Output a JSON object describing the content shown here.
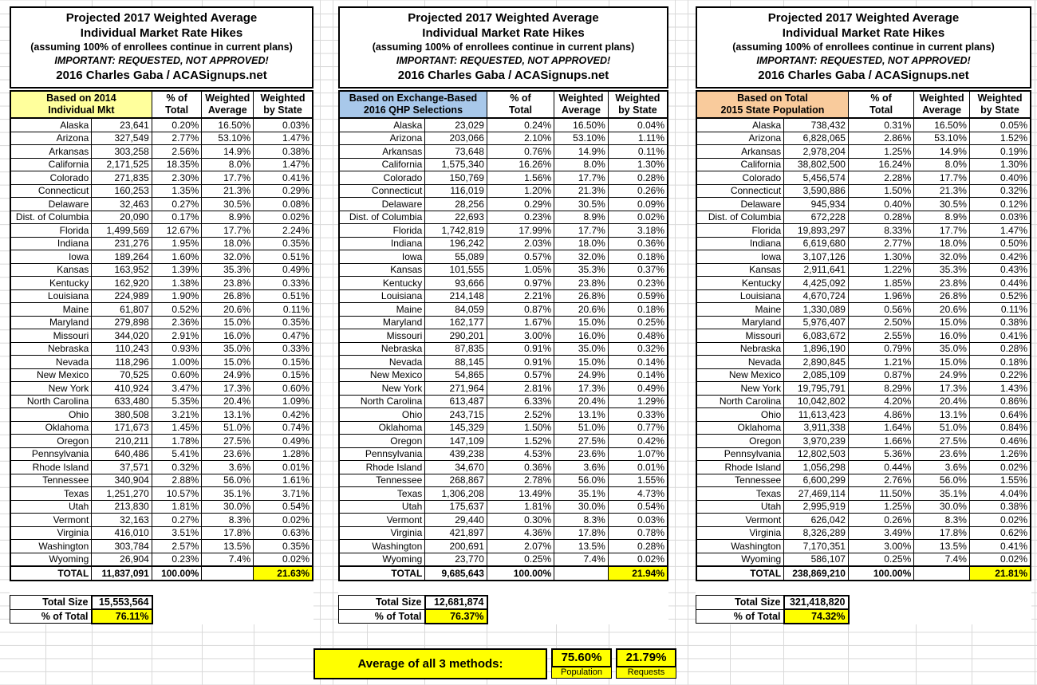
{
  "shared": {
    "title_line1": "Projected 2017 Weighted Average",
    "title_line2": "Individual Market Rate Hikes",
    "subtitle": "(assuming 100% of enrollees continue in current plans)",
    "warning": "IMPORTANT: REQUESTED, NOT APPROVED!",
    "byline": "2016 Charles Gaba / ACASignups.net",
    "col_pct_line1": "% of",
    "col_pct_line2": "Total",
    "col_wavg_line1": "Weighted",
    "col_wavg_line2": "Average",
    "col_wstate_line1": "Weighted",
    "col_wstate_line2": "by State"
  },
  "colors": {
    "header_yellow": "#FFFF9C",
    "header_blue": "#A8C8EA",
    "header_peach": "#F9CB9C",
    "highlight_yellow": "#FFFF00"
  },
  "tables": [
    {
      "header_line1": "Based on 2014",
      "header_line2": "Individual Mkt",
      "header_color": "#FFFF9C",
      "rows": [
        {
          "state": "Alaska",
          "value": "23,641",
          "pct": "0.20%",
          "wavg": "16.50%",
          "wstate": "0.03%"
        },
        {
          "state": "Arizona",
          "value": "327,549",
          "pct": "2.77%",
          "wavg": "53.10%",
          "wstate": "1.47%"
        },
        {
          "state": "Arkansas",
          "value": "303,258",
          "pct": "2.56%",
          "wavg": "14.9%",
          "wstate": "0.38%"
        },
        {
          "state": "California",
          "value": "2,171,525",
          "pct": "18.35%",
          "wavg": "8.0%",
          "wstate": "1.47%"
        },
        {
          "state": "Colorado",
          "value": "271,835",
          "pct": "2.30%",
          "wavg": "17.7%",
          "wstate": "0.41%"
        },
        {
          "state": "Connecticut",
          "value": "160,253",
          "pct": "1.35%",
          "wavg": "21.3%",
          "wstate": "0.29%"
        },
        {
          "state": "Delaware",
          "value": "32,463",
          "pct": "0.27%",
          "wavg": "30.5%",
          "wstate": "0.08%"
        },
        {
          "state": "Dist. of Columbia",
          "value": "20,090",
          "pct": "0.17%",
          "wavg": "8.9%",
          "wstate": "0.02%"
        },
        {
          "state": "Florida",
          "value": "1,499,569",
          "pct": "12.67%",
          "wavg": "17.7%",
          "wstate": "2.24%"
        },
        {
          "state": "Indiana",
          "value": "231,276",
          "pct": "1.95%",
          "wavg": "18.0%",
          "wstate": "0.35%"
        },
        {
          "state": "Iowa",
          "value": "189,264",
          "pct": "1.60%",
          "wavg": "32.0%",
          "wstate": "0.51%"
        },
        {
          "state": "Kansas",
          "value": "163,952",
          "pct": "1.39%",
          "wavg": "35.3%",
          "wstate": "0.49%"
        },
        {
          "state": "Kentucky",
          "value": "162,920",
          "pct": "1.38%",
          "wavg": "23.8%",
          "wstate": "0.33%"
        },
        {
          "state": "Louisiana",
          "value": "224,989",
          "pct": "1.90%",
          "wavg": "26.8%",
          "wstate": "0.51%"
        },
        {
          "state": "Maine",
          "value": "61,807",
          "pct": "0.52%",
          "wavg": "20.6%",
          "wstate": "0.11%"
        },
        {
          "state": "Maryland",
          "value": "279,898",
          "pct": "2.36%",
          "wavg": "15.0%",
          "wstate": "0.35%"
        },
        {
          "state": "Missouri",
          "value": "344,020",
          "pct": "2.91%",
          "wavg": "16.0%",
          "wstate": "0.47%"
        },
        {
          "state": "Nebraska",
          "value": "110,243",
          "pct": "0.93%",
          "wavg": "35.0%",
          "wstate": "0.33%"
        },
        {
          "state": "Nevada",
          "value": "118,296",
          "pct": "1.00%",
          "wavg": "15.0%",
          "wstate": "0.15%"
        },
        {
          "state": "New Mexico",
          "value": "70,525",
          "pct": "0.60%",
          "wavg": "24.9%",
          "wstate": "0.15%"
        },
        {
          "state": "New York",
          "value": "410,924",
          "pct": "3.47%",
          "wavg": "17.3%",
          "wstate": "0.60%"
        },
        {
          "state": "North Carolina",
          "value": "633,480",
          "pct": "5.35%",
          "wavg": "20.4%",
          "wstate": "1.09%"
        },
        {
          "state": "Ohio",
          "value": "380,508",
          "pct": "3.21%",
          "wavg": "13.1%",
          "wstate": "0.42%"
        },
        {
          "state": "Oklahoma",
          "value": "171,673",
          "pct": "1.45%",
          "wavg": "51.0%",
          "wstate": "0.74%"
        },
        {
          "state": "Oregon",
          "value": "210,211",
          "pct": "1.78%",
          "wavg": "27.5%",
          "wstate": "0.49%"
        },
        {
          "state": "Pennsylvania",
          "value": "640,486",
          "pct": "5.41%",
          "wavg": "23.6%",
          "wstate": "1.28%"
        },
        {
          "state": "Rhode Island",
          "value": "37,571",
          "pct": "0.32%",
          "wavg": "3.6%",
          "wstate": "0.01%"
        },
        {
          "state": "Tennessee",
          "value": "340,904",
          "pct": "2.88%",
          "wavg": "56.0%",
          "wstate": "1.61%"
        },
        {
          "state": "Texas",
          "value": "1,251,270",
          "pct": "10.57%",
          "wavg": "35.1%",
          "wstate": "3.71%"
        },
        {
          "state": "Utah",
          "value": "213,830",
          "pct": "1.81%",
          "wavg": "30.0%",
          "wstate": "0.54%"
        },
        {
          "state": "Vermont",
          "value": "32,163",
          "pct": "0.27%",
          "wavg": "8.3%",
          "wstate": "0.02%"
        },
        {
          "state": "Virginia",
          "value": "416,010",
          "pct": "3.51%",
          "wavg": "17.8%",
          "wstate": "0.63%"
        },
        {
          "state": "Washington",
          "value": "303,784",
          "pct": "2.57%",
          "wavg": "13.5%",
          "wstate": "0.35%"
        },
        {
          "state": "Wyoming",
          "value": "26,904",
          "pct": "0.23%",
          "wavg": "7.4%",
          "wstate": "0.02%"
        }
      ],
      "total": {
        "label": "TOTAL",
        "value": "11,837,091",
        "pct": "100.00%",
        "wavg": "",
        "wstate": "21.63%"
      },
      "total_size_label": "Total Size",
      "total_size": "15,553,564",
      "pct_total_label": "% of Total",
      "pct_of_total": "76.11%"
    },
    {
      "header_line1": "Based on Exchange-Based",
      "header_line2": "2016 QHP Selections",
      "header_color": "#A8C8EA",
      "rows": [
        {
          "state": "Alaska",
          "value": "23,029",
          "pct": "0.24%",
          "wavg": "16.50%",
          "wstate": "0.04%"
        },
        {
          "state": "Arizona",
          "value": "203,066",
          "pct": "2.10%",
          "wavg": "53.10%",
          "wstate": "1.11%"
        },
        {
          "state": "Arkansas",
          "value": "73,648",
          "pct": "0.76%",
          "wavg": "14.9%",
          "wstate": "0.11%"
        },
        {
          "state": "California",
          "value": "1,575,340",
          "pct": "16.26%",
          "wavg": "8.0%",
          "wstate": "1.30%"
        },
        {
          "state": "Colorado",
          "value": "150,769",
          "pct": "1.56%",
          "wavg": "17.7%",
          "wstate": "0.28%"
        },
        {
          "state": "Connecticut",
          "value": "116,019",
          "pct": "1.20%",
          "wavg": "21.3%",
          "wstate": "0.26%"
        },
        {
          "state": "Delaware",
          "value": "28,256",
          "pct": "0.29%",
          "wavg": "30.5%",
          "wstate": "0.09%"
        },
        {
          "state": "Dist. of Columbia",
          "value": "22,693",
          "pct": "0.23%",
          "wavg": "8.9%",
          "wstate": "0.02%"
        },
        {
          "state": "Florida",
          "value": "1,742,819",
          "pct": "17.99%",
          "wavg": "17.7%",
          "wstate": "3.18%"
        },
        {
          "state": "Indiana",
          "value": "196,242",
          "pct": "2.03%",
          "wavg": "18.0%",
          "wstate": "0.36%"
        },
        {
          "state": "Iowa",
          "value": "55,089",
          "pct": "0.57%",
          "wavg": "32.0%",
          "wstate": "0.18%"
        },
        {
          "state": "Kansas",
          "value": "101,555",
          "pct": "1.05%",
          "wavg": "35.3%",
          "wstate": "0.37%"
        },
        {
          "state": "Kentucky",
          "value": "93,666",
          "pct": "0.97%",
          "wavg": "23.8%",
          "wstate": "0.23%"
        },
        {
          "state": "Louisiana",
          "value": "214,148",
          "pct": "2.21%",
          "wavg": "26.8%",
          "wstate": "0.59%"
        },
        {
          "state": "Maine",
          "value": "84,059",
          "pct": "0.87%",
          "wavg": "20.6%",
          "wstate": "0.18%"
        },
        {
          "state": "Maryland",
          "value": "162,177",
          "pct": "1.67%",
          "wavg": "15.0%",
          "wstate": "0.25%"
        },
        {
          "state": "Missouri",
          "value": "290,201",
          "pct": "3.00%",
          "wavg": "16.0%",
          "wstate": "0.48%"
        },
        {
          "state": "Nebraska",
          "value": "87,835",
          "pct": "0.91%",
          "wavg": "35.0%",
          "wstate": "0.32%"
        },
        {
          "state": "Nevada",
          "value": "88,145",
          "pct": "0.91%",
          "wavg": "15.0%",
          "wstate": "0.14%"
        },
        {
          "state": "New Mexico",
          "value": "54,865",
          "pct": "0.57%",
          "wavg": "24.9%",
          "wstate": "0.14%"
        },
        {
          "state": "New York",
          "value": "271,964",
          "pct": "2.81%",
          "wavg": "17.3%",
          "wstate": "0.49%"
        },
        {
          "state": "North Carolina",
          "value": "613,487",
          "pct": "6.33%",
          "wavg": "20.4%",
          "wstate": "1.29%"
        },
        {
          "state": "Ohio",
          "value": "243,715",
          "pct": "2.52%",
          "wavg": "13.1%",
          "wstate": "0.33%"
        },
        {
          "state": "Oklahoma",
          "value": "145,329",
          "pct": "1.50%",
          "wavg": "51.0%",
          "wstate": "0.77%"
        },
        {
          "state": "Oregon",
          "value": "147,109",
          "pct": "1.52%",
          "wavg": "27.5%",
          "wstate": "0.42%"
        },
        {
          "state": "Pennsylvania",
          "value": "439,238",
          "pct": "4.53%",
          "wavg": "23.6%",
          "wstate": "1.07%"
        },
        {
          "state": "Rhode Island",
          "value": "34,670",
          "pct": "0.36%",
          "wavg": "3.6%",
          "wstate": "0.01%"
        },
        {
          "state": "Tennessee",
          "value": "268,867",
          "pct": "2.78%",
          "wavg": "56.0%",
          "wstate": "1.55%"
        },
        {
          "state": "Texas",
          "value": "1,306,208",
          "pct": "13.49%",
          "wavg": "35.1%",
          "wstate": "4.73%"
        },
        {
          "state": "Utah",
          "value": "175,637",
          "pct": "1.81%",
          "wavg": "30.0%",
          "wstate": "0.54%"
        },
        {
          "state": "Vermont",
          "value": "29,440",
          "pct": "0.30%",
          "wavg": "8.3%",
          "wstate": "0.03%"
        },
        {
          "state": "Virginia",
          "value": "421,897",
          "pct": "4.36%",
          "wavg": "17.8%",
          "wstate": "0.78%"
        },
        {
          "state": "Washington",
          "value": "200,691",
          "pct": "2.07%",
          "wavg": "13.5%",
          "wstate": "0.28%"
        },
        {
          "state": "Wyoming",
          "value": "23,770",
          "pct": "0.25%",
          "wavg": "7.4%",
          "wstate": "0.02%"
        }
      ],
      "total": {
        "label": "TOTAL",
        "value": "9,685,643",
        "pct": "100.00%",
        "wavg": "",
        "wstate": "21.94%"
      },
      "total_size_label": "Total Size",
      "total_size": "12,681,874",
      "pct_total_label": "% of Total",
      "pct_of_total": "76.37%"
    },
    {
      "header_line1": "Based on Total",
      "header_line2": "2015 State Population",
      "header_color": "#F9CB9C",
      "rows": [
        {
          "state": "Alaska",
          "value": "738,432",
          "pct": "0.31%",
          "wavg": "16.50%",
          "wstate": "0.05%"
        },
        {
          "state": "Arizona",
          "value": "6,828,065",
          "pct": "2.86%",
          "wavg": "53.10%",
          "wstate": "1.52%"
        },
        {
          "state": "Arkansas",
          "value": "2,978,204",
          "pct": "1.25%",
          "wavg": "14.9%",
          "wstate": "0.19%"
        },
        {
          "state": "California",
          "value": "38,802,500",
          "pct": "16.24%",
          "wavg": "8.0%",
          "wstate": "1.30%"
        },
        {
          "state": "Colorado",
          "value": "5,456,574",
          "pct": "2.28%",
          "wavg": "17.7%",
          "wstate": "0.40%"
        },
        {
          "state": "Connecticut",
          "value": "3,590,886",
          "pct": "1.50%",
          "wavg": "21.3%",
          "wstate": "0.32%"
        },
        {
          "state": "Delaware",
          "value": "945,934",
          "pct": "0.40%",
          "wavg": "30.5%",
          "wstate": "0.12%"
        },
        {
          "state": "Dist. of Columbia",
          "value": "672,228",
          "pct": "0.28%",
          "wavg": "8.9%",
          "wstate": "0.03%"
        },
        {
          "state": "Florida",
          "value": "19,893,297",
          "pct": "8.33%",
          "wavg": "17.7%",
          "wstate": "1.47%"
        },
        {
          "state": "Indiana",
          "value": "6,619,680",
          "pct": "2.77%",
          "wavg": "18.0%",
          "wstate": "0.50%"
        },
        {
          "state": "Iowa",
          "value": "3,107,126",
          "pct": "1.30%",
          "wavg": "32.0%",
          "wstate": "0.42%"
        },
        {
          "state": "Kansas",
          "value": "2,911,641",
          "pct": "1.22%",
          "wavg": "35.3%",
          "wstate": "0.43%"
        },
        {
          "state": "Kentucky",
          "value": "4,425,092",
          "pct": "1.85%",
          "wavg": "23.8%",
          "wstate": "0.44%"
        },
        {
          "state": "Louisiana",
          "value": "4,670,724",
          "pct": "1.96%",
          "wavg": "26.8%",
          "wstate": "0.52%"
        },
        {
          "state": "Maine",
          "value": "1,330,089",
          "pct": "0.56%",
          "wavg": "20.6%",
          "wstate": "0.11%"
        },
        {
          "state": "Maryland",
          "value": "5,976,407",
          "pct": "2.50%",
          "wavg": "15.0%",
          "wstate": "0.38%"
        },
        {
          "state": "Missouri",
          "value": "6,083,672",
          "pct": "2.55%",
          "wavg": "16.0%",
          "wstate": "0.41%"
        },
        {
          "state": "Nebraska",
          "value": "1,896,190",
          "pct": "0.79%",
          "wavg": "35.0%",
          "wstate": "0.28%"
        },
        {
          "state": "Nevada",
          "value": "2,890,845",
          "pct": "1.21%",
          "wavg": "15.0%",
          "wstate": "0.18%"
        },
        {
          "state": "New Mexico",
          "value": "2,085,109",
          "pct": "0.87%",
          "wavg": "24.9%",
          "wstate": "0.22%"
        },
        {
          "state": "New York",
          "value": "19,795,791",
          "pct": "8.29%",
          "wavg": "17.3%",
          "wstate": "1.43%"
        },
        {
          "state": "North Carolina",
          "value": "10,042,802",
          "pct": "4.20%",
          "wavg": "20.4%",
          "wstate": "0.86%"
        },
        {
          "state": "Ohio",
          "value": "11,613,423",
          "pct": "4.86%",
          "wavg": "13.1%",
          "wstate": "0.64%"
        },
        {
          "state": "Oklahoma",
          "value": "3,911,338",
          "pct": "1.64%",
          "wavg": "51.0%",
          "wstate": "0.84%"
        },
        {
          "state": "Oregon",
          "value": "3,970,239",
          "pct": "1.66%",
          "wavg": "27.5%",
          "wstate": "0.46%"
        },
        {
          "state": "Pennsylvania",
          "value": "12,802,503",
          "pct": "5.36%",
          "wavg": "23.6%",
          "wstate": "1.26%"
        },
        {
          "state": "Rhode Island",
          "value": "1,056,298",
          "pct": "0.44%",
          "wavg": "3.6%",
          "wstate": "0.02%"
        },
        {
          "state": "Tennessee",
          "value": "6,600,299",
          "pct": "2.76%",
          "wavg": "56.0%",
          "wstate": "1.55%"
        },
        {
          "state": "Texas",
          "value": "27,469,114",
          "pct": "11.50%",
          "wavg": "35.1%",
          "wstate": "4.04%"
        },
        {
          "state": "Utah",
          "value": "2,995,919",
          "pct": "1.25%",
          "wavg": "30.0%",
          "wstate": "0.38%"
        },
        {
          "state": "Vermont",
          "value": "626,042",
          "pct": "0.26%",
          "wavg": "8.3%",
          "wstate": "0.02%"
        },
        {
          "state": "Virginia",
          "value": "8,326,289",
          "pct": "3.49%",
          "wavg": "17.8%",
          "wstate": "0.62%"
        },
        {
          "state": "Washington",
          "value": "7,170,351",
          "pct": "3.00%",
          "wavg": "13.5%",
          "wstate": "0.41%"
        },
        {
          "state": "Wyoming",
          "value": "586,107",
          "pct": "0.25%",
          "wavg": "7.4%",
          "wstate": "0.02%"
        }
      ],
      "total": {
        "label": "TOTAL",
        "value": "238,869,210",
        "pct": "100.00%",
        "wavg": "",
        "wstate": "21.81%"
      },
      "total_size_label": "Total Size",
      "total_size": "321,418,820",
      "pct_total_label": "% of Total",
      "pct_of_total": "74.32%"
    }
  ],
  "footer": {
    "label": "Average of all 3 methods:",
    "population_value": "75.60%",
    "population_caption": "Population",
    "requests_value": "21.79%",
    "requests_caption": "Requests"
  }
}
